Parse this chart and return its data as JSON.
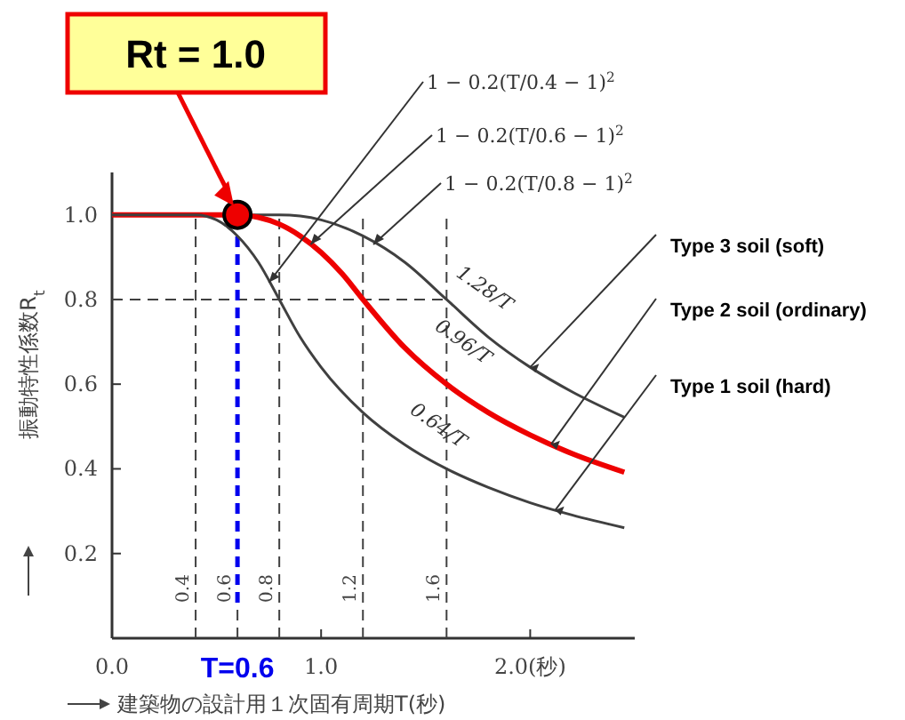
{
  "chart_data": {
    "type": "line",
    "xlabel": "建築物の設計用１次固有周期T(秒)",
    "ylabel": "振動特性係数R$_{t}$",
    "xlim": [
      0,
      2.5
    ],
    "ylim": [
      0,
      1.1
    ],
    "xticks": [
      {
        "value": 0,
        "label": "0.0"
      },
      {
        "value": 1,
        "label": "1.0"
      },
      {
        "value": 2,
        "label": "2.0(秒)"
      }
    ],
    "yticks": [
      0.2,
      0.4,
      0.6,
      0.8,
      {
        "value": 1,
        "label": "1.0"
      }
    ],
    "grid": false,
    "legend": false,
    "line_style": "solid",
    "series": [
      {
        "name": "Type 3 soil (soft)",
        "color": "#404040",
        "x": [
          0,
          0.8,
          0.9,
          1.0,
          1.2,
          1.4,
          1.6,
          1.8,
          2.0,
          2.2,
          2.45
        ],
        "values": [
          1,
          1,
          0.997,
          0.988,
          0.95,
          0.888,
          0.8,
          0.711,
          0.64,
          0.582,
          0.522
        ]
      },
      {
        "name": "Type 2 soil (ordinary)",
        "color": "#ee0000",
        "x": [
          0,
          0.6,
          0.7,
          0.8,
          0.9,
          1.0,
          1.1,
          1.2,
          1.4,
          1.6,
          1.8,
          2.0,
          2.2,
          2.45
        ],
        "values": [
          1,
          1,
          0.994,
          0.978,
          0.95,
          0.911,
          0.861,
          0.8,
          0.686,
          0.6,
          0.533,
          0.48,
          0.436,
          0.392
        ]
      },
      {
        "name": "Type 1 soil (hard)",
        "color": "#404040",
        "x": [
          0,
          0.4,
          0.5,
          0.6,
          0.7,
          0.8,
          0.9,
          1.0,
          1.2,
          1.4,
          1.6,
          1.8,
          2.0,
          2.2,
          2.45
        ],
        "values": [
          1,
          1,
          0.988,
          0.95,
          0.888,
          0.8,
          0.711,
          0.64,
          0.533,
          0.457,
          0.4,
          0.356,
          0.32,
          0.291,
          0.261
        ]
      },
      {
        "type": "scatter",
        "marker": "circle",
        "color": "#ee0000",
        "x": [
          0.6
        ],
        "values": [
          1
        ]
      }
    ],
    "ref_lines": [
      {
        "axis": "x",
        "value": 0.4,
        "label": "0.4",
        "line_style": "dashed",
        "color": "#404040"
      },
      {
        "axis": "x",
        "value": 0.6,
        "label": "0.6",
        "line_style": "dashed",
        "color": "#404040"
      },
      {
        "axis": "x",
        "value": 0.8,
        "label": "0.8",
        "line_style": "dashed",
        "color": "#404040"
      },
      {
        "axis": "x",
        "value": 1.2,
        "label": "1.2",
        "line_style": "dashed",
        "color": "#404040"
      },
      {
        "axis": "x",
        "value": 1.6,
        "label": "1.6",
        "line_style": "dashed",
        "color": "#404040"
      },
      {
        "axis": "y",
        "value": 0.8,
        "line_style": "dashed",
        "color": "#404040"
      },
      {
        "axis": "x",
        "value": 0.6,
        "label": "T=0.6",
        "line_style": "dashed",
        "color": "#0000ee"
      }
    ],
    "annotations": [
      "Rt = 1.0",
      {
        "text": "1 − 0.2(T/0.4 − 1)$^{2}$",
        "x": 0.75,
        "y": 0.84
      },
      {
        "text": "1 − 0.2(T/0.6 − 1)$^{2}$",
        "x": 0.95,
        "y": 0.93
      },
      {
        "text": "1 − 0.2(T/0.8 − 1)$^{2}$",
        "x": 1.25,
        "y": 0.93
      },
      "1.28/T",
      "0.96/T",
      "0.64/T"
    ]
  }
}
